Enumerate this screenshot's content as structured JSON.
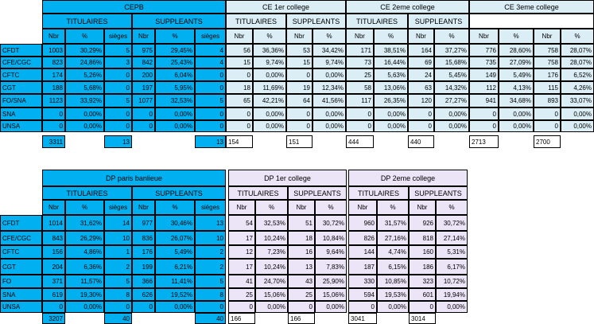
{
  "top": {
    "cepb_title": "CEPB",
    "ce1_title": "CE 1er college",
    "ce2_title": "CE 2eme college",
    "ce3_title": "CE 3eme college",
    "titulaires": "TITULAIRES",
    "suppleants": "SUPPLEANTS",
    "col_nbr": "Nbr",
    "col_pct": "%",
    "col_sieges": "sièges",
    "rows": [
      {
        "org": "CFDT",
        "c": [
          "1003",
          "30,29%",
          "5",
          "975",
          "29,45%",
          "4"
        ],
        "ce1": [
          "56",
          "36,36%",
          "53",
          "34,42%"
        ],
        "ce2": [
          "171",
          "38,51%",
          "164",
          "37,27%"
        ],
        "ce3": [
          "776",
          "28,60%",
          "758",
          "28,07%"
        ]
      },
      {
        "org": "CFE/CGC",
        "c": [
          "823",
          "24,86%",
          "3",
          "842",
          "25,43%",
          "4"
        ],
        "ce1": [
          "15",
          "9,74%",
          "15",
          "9,74%"
        ],
        "ce2": [
          "73",
          "16,44%",
          "69",
          "15,68%"
        ],
        "ce3": [
          "735",
          "27,09%",
          "758",
          "28,07%"
        ]
      },
      {
        "org": "CFTC",
        "c": [
          "174",
          "5,26%",
          "0",
          "200",
          "6,04%",
          "0"
        ],
        "ce1": [
          "0",
          "0,00%",
          "0",
          "0,00%"
        ],
        "ce2": [
          "25",
          "5,63%",
          "24",
          "5,45%"
        ],
        "ce3": [
          "149",
          "5,49%",
          "176",
          "6,52%"
        ]
      },
      {
        "org": "CGT",
        "c": [
          "188",
          "5,68%",
          "0",
          "197",
          "5,95%",
          "0"
        ],
        "ce1": [
          "18",
          "11,69%",
          "19",
          "12,34%"
        ],
        "ce2": [
          "58",
          "13,06%",
          "63",
          "14,32%"
        ],
        "ce3": [
          "112",
          "4,13%",
          "115",
          "4,26%"
        ]
      },
      {
        "org": "FO/SNA",
        "c": [
          "1123",
          "33,92%",
          "5",
          "1077",
          "32,53%",
          "5"
        ],
        "ce1": [
          "65",
          "42,21%",
          "64",
          "41,56%"
        ],
        "ce2": [
          "117",
          "26,35%",
          "120",
          "27,27%"
        ],
        "ce3": [
          "941",
          "34,68%",
          "893",
          "33,07%"
        ]
      },
      {
        "org": "SNA",
        "c": [
          "0",
          "0,00%",
          "0",
          "0",
          "0,00%",
          "0"
        ],
        "ce1": [
          "0",
          "0,00%",
          "0",
          "0,00%"
        ],
        "ce2": [
          "0",
          "0,00%",
          "0",
          "0,00%"
        ],
        "ce3": [
          "0",
          "0,00%",
          "0",
          "0,00%"
        ]
      },
      {
        "org": "UNSA",
        "c": [
          "0",
          "0,00%",
          "0",
          "0",
          "0,00%",
          "0"
        ],
        "ce1": [
          "0",
          "0,00%",
          "0",
          "0,00%"
        ],
        "ce2": [
          "0",
          "0,00%",
          "0",
          "0,00%"
        ],
        "ce3": [
          "0",
          "0,00%",
          "0",
          "0,00%"
        ]
      }
    ],
    "totals": {
      "c_nbr": "3311",
      "c_sieges": "13",
      "s_sieges": "13",
      "ce1_t": "154",
      "ce1_s": "151",
      "ce2_t": "444",
      "ce2_s": "440",
      "ce3_t": "2713",
      "ce3_s": "2700"
    }
  },
  "bottom": {
    "dp_title": "DP paris banlieue",
    "dp1_title": "DP 1er college",
    "dp2_title": "DP 2eme college",
    "titulaires": "TITULAIRES",
    "suppleants": "SUPPLEANTS",
    "col_nbr": "Nbr",
    "col_pct": "%",
    "col_sieges": "sièges",
    "rows": [
      {
        "org": "CFDT",
        "c": [
          "1014",
          "31,62%",
          "14",
          "977",
          "30,46%",
          "13"
        ],
        "d1": [
          "54",
          "32,53%",
          "51",
          "30,72%"
        ],
        "d2": [
          "960",
          "31,57%",
          "926",
          "30,72%"
        ]
      },
      {
        "org": "CFE/CGC",
        "c": [
          "843",
          "26,29%",
          "10",
          "836",
          "26,07%",
          "10"
        ],
        "d1": [
          "17",
          "10,24%",
          "18",
          "10,84%"
        ],
        "d2": [
          "826",
          "27,16%",
          "818",
          "27,14%"
        ]
      },
      {
        "org": "CFTC",
        "c": [
          "156",
          "4,86%",
          "1",
          "176",
          "5,49%",
          "2"
        ],
        "d1": [
          "12",
          "7,23%",
          "16",
          "9,64%"
        ],
        "d2": [
          "144",
          "4,74%",
          "160",
          "5,31%"
        ]
      },
      {
        "org": "CGT",
        "c": [
          "204",
          "6,36%",
          "2",
          "199",
          "6,21%",
          "2"
        ],
        "d1": [
          "17",
          "10,24%",
          "13",
          "7,83%"
        ],
        "d2": [
          "187",
          "6,15%",
          "186",
          "6,17%"
        ]
      },
      {
        "org": "FO",
        "c": [
          "371",
          "11,57%",
          "5",
          "366",
          "11,41%",
          "5"
        ],
        "d1": [
          "41",
          "24,70%",
          "43",
          "25,90%"
        ],
        "d2": [
          "330",
          "10,85%",
          "323",
          "10,72%"
        ]
      },
      {
        "org": "SNA",
        "c": [
          "619",
          "19,30%",
          "8",
          "626",
          "19,52%",
          "8"
        ],
        "d1": [
          "25",
          "15,06%",
          "25",
          "15,06%"
        ],
        "d2": [
          "594",
          "19,53%",
          "601",
          "19,94%"
        ]
      },
      {
        "org": "UNSA",
        "c": [
          "0",
          "0,00%",
          "0",
          "0",
          "0,00%",
          "0"
        ],
        "d1": [
          "0",
          "0,00%",
          "0",
          "0,00%"
        ],
        "d2": [
          "0",
          "0,00%",
          "0",
          "0,00%"
        ]
      }
    ],
    "totals": {
      "c_nbr": "3207",
      "c_sieges": "40",
      "s_sieges": "40",
      "d1_t": "166",
      "d1_s": "166",
      "d2_t": "3041",
      "d2_s": "3014"
    }
  },
  "colors": {
    "header_blue": "#00b0f0",
    "light_blue": "#dbeef6",
    "lavender": "#ece4f7"
  }
}
